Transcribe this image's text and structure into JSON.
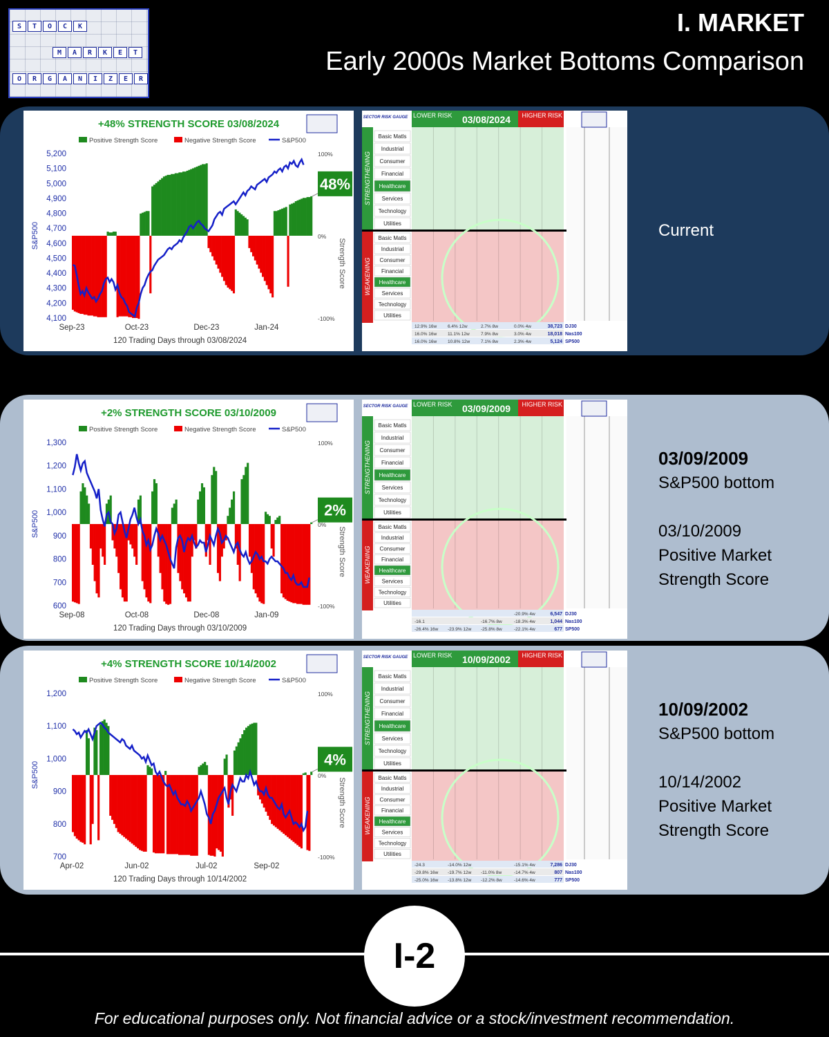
{
  "header": {
    "logo_words": [
      "STOCK",
      "MARKET",
      "ORGANIZER"
    ],
    "title": "I. MARKET",
    "subtitle": "Early 2000s Market Bottoms Comparison"
  },
  "panels": [
    {
      "id": "current",
      "side_label": "Current",
      "side_lines": [],
      "gauge": {
        "date": "03/08/2024",
        "sectors": [
          "Basic Matls",
          "Industrial",
          "Consumer",
          "Financial",
          "Healthcare",
          "Services",
          "Technology",
          "Utilities"
        ],
        "footer_rows": [
          [
            "12.9% 16w",
            "6.4% 12w",
            "2.7% 8w",
            "0.0% 4w",
            "38,723",
            "DJ30"
          ],
          [
            "16.0% 16w",
            "11.1% 12w",
            "7.9% 8w",
            "3.0% 4w",
            "18,018",
            "Nas100"
          ],
          [
            "16.0% 16w",
            "10.8% 12w",
            "7.1% 8w",
            "2.3% 4w",
            "5,124",
            "SP500"
          ]
        ]
      }
    },
    {
      "id": "p2009",
      "side_label": "",
      "side_lines": [
        "03/09/2009",
        "S&P500 bottom",
        "",
        "03/10/2009",
        "Positive Market",
        "Strength Score"
      ],
      "gauge": {
        "date": "03/09/2009",
        "sectors": [
          "Basic Matls",
          "Industrial",
          "Consumer",
          "Financial",
          "Healthcare",
          "Services",
          "Technology",
          "Utilities"
        ],
        "footer_rows": [
          [
            "",
            "",
            "",
            "-20.9% 4w",
            "6,547",
            "DJ30"
          ],
          [
            "-16.1",
            "",
            "-16.7% 8w",
            "-18.3% 4w",
            "1,044",
            "Nas100"
          ],
          [
            "-26.4% 16w",
            "-23.9% 12w",
            "-25.8% 8w",
            "-22.1% 4w",
            "677",
            "SP500"
          ]
        ]
      }
    },
    {
      "id": "p2002",
      "side_label": "",
      "side_lines": [
        "10/09/2002",
        "S&P500 bottom",
        "",
        "10/14/2002",
        "Positive Market",
        "Strength Score"
      ],
      "gauge": {
        "date": "10/09/2002",
        "sectors": [
          "Basic Matls",
          "Industrial",
          "Consumer",
          "Financial",
          "Healthcare",
          "Services",
          "Technology",
          "Utilities"
        ],
        "footer_rows": [
          [
            "-24.3",
            "-14.0% 12w",
            "",
            "-15.1% 4w",
            "7,286",
            "DJ30"
          ],
          [
            "-29.8% 16w",
            "-19.7% 12w",
            "-11.0% 8w",
            "-14.7% 4w",
            "807",
            "Nas100"
          ],
          [
            "-25.0% 16w",
            "-13.8% 12w",
            "-12.2% 8w",
            "-14.6% 4w",
            "777",
            "SP500"
          ]
        ]
      }
    }
  ],
  "gauge_labels": {
    "sector_risk_gauge": "SECTOR RISK GAUGE",
    "lower_risk": "LOWER RISK",
    "higher_risk": "HIGHER RISK",
    "strengthening": "STRENGTHENING",
    "weakening": "WEAKENING"
  },
  "chart_data": [
    {
      "type": "bar+line",
      "title": "+48% STRENGTH SCORE 03/08/2024",
      "legend": [
        "Positive Strength Score",
        "Negative Strength Score",
        "S&P500"
      ],
      "xlabel": "120 Trading Days through 03/08/2024",
      "ylabel": "S&P500",
      "y2label": "Strength Score",
      "x_ticks": [
        "Sep-23",
        "Oct-23",
        "Dec-23",
        "Jan-24"
      ],
      "y_ticks": [
        "4,100",
        "4,200",
        "4,300",
        "4,400",
        "4,500",
        "4,600",
        "4,700",
        "4,800",
        "4,900",
        "5,000",
        "5,100",
        "5,200"
      ],
      "ylim": [
        4100,
        5200
      ],
      "y2_ticks": [
        "-100%",
        "0%",
        "100%"
      ],
      "y2lim": [
        -100,
        100
      ],
      "score_badge": "48%",
      "strength_score": [
        -90,
        -92,
        -93,
        -94,
        -95,
        -95,
        -96,
        -96,
        -97,
        -97,
        -97,
        -98,
        -98,
        -99,
        -99,
        -99,
        -99,
        -99,
        5,
        4,
        4,
        5,
        5,
        -99,
        -98,
        -98,
        -98,
        -98,
        -98,
        -99,
        -99,
        -100,
        -100,
        -100,
        -101,
        27,
        28,
        29,
        30,
        30,
        -70,
        60,
        62,
        64,
        66,
        68,
        70,
        72,
        73,
        74,
        74,
        75,
        75,
        76,
        76,
        77,
        77,
        78,
        78,
        79,
        80,
        81,
        82,
        83,
        84,
        85,
        86,
        87,
        87,
        88,
        -15,
        -20,
        -25,
        -30,
        -35,
        -40,
        -45,
        -50,
        -55,
        -60,
        -63,
        -65,
        -67,
        -70,
        32,
        30,
        28,
        26,
        24,
        22,
        20,
        -15,
        -20,
        -25,
        -30,
        -35,
        -40,
        -45,
        -50,
        -55,
        -60,
        -65,
        -70,
        -75,
        30,
        30,
        31,
        32,
        33,
        34,
        35,
        -62,
        38,
        39,
        40,
        42,
        43,
        44,
        45,
        46,
        46,
        47,
        47,
        48
      ],
      "sp500": [
        4455,
        4450,
        4390,
        4320,
        4260,
        4280,
        4250,
        4300,
        4270,
        4250,
        4230,
        4240,
        4210,
        4230,
        4260,
        4280,
        4330,
        4360,
        4370,
        4340,
        4360,
        4340,
        4290,
        4320,
        4270,
        4240,
        4230,
        4200,
        4180,
        4140,
        4130,
        4120,
        4110,
        4170,
        4200,
        4260,
        4300,
        4320,
        4360,
        4390,
        4410,
        4420,
        4450,
        4470,
        4490,
        4500,
        4510,
        4520,
        4540,
        4560,
        4570,
        4560,
        4580,
        4590,
        4600,
        4620,
        4610,
        4640,
        4660,
        4680,
        4710,
        4720,
        4700,
        4720,
        4740,
        4750,
        4730,
        4720,
        4700,
        4690,
        4680,
        4700,
        4720,
        4760,
        4780,
        4800,
        4810,
        4790,
        4830,
        4840,
        4850,
        4860,
        4870,
        4880,
        4860,
        4880,
        4900,
        4920,
        4940,
        4920,
        4950,
        4960,
        4980,
        4970,
        4960,
        4990,
        5000,
        5010,
        5020,
        5030,
        5010,
        5040,
        5050,
        5060,
        5080,
        5070,
        5090,
        5100,
        5080,
        5110,
        5120,
        5100,
        5140,
        5130,
        5150,
        5120,
        5110,
        5140,
        5160,
        5124
      ]
    },
    {
      "type": "bar+line",
      "title": "+2% STRENGTH SCORE 03/10/2009",
      "legend": [
        "Positive Strength Score",
        "Negative Strength Score",
        "S&P500"
      ],
      "xlabel": "120 Trading Days through 03/10/2009",
      "ylabel": "S&P500",
      "y2label": "Strength Score",
      "x_ticks": [
        "Sep-08",
        "Oct-08",
        "Dec-08",
        "Jan-09"
      ],
      "y_ticks": [
        "600",
        "700",
        "800",
        "900",
        "1,000",
        "1,100",
        "1,200",
        "1,300"
      ],
      "ylim": [
        600,
        1300
      ],
      "y2_ticks": [
        "-100%",
        "0%",
        "100%"
      ],
      "y2lim": [
        -100,
        100
      ],
      "score_badge": "2%",
      "strength_score": [
        -95,
        -96,
        -97,
        -98,
        40,
        50,
        45,
        35,
        25,
        -30,
        -50,
        -70,
        -85,
        -90,
        -30,
        -40,
        -50,
        25,
        30,
        35,
        -20,
        -30,
        -40,
        -60,
        -80,
        -90,
        -95,
        -95,
        -20,
        -25,
        -30,
        -40,
        -50,
        30,
        35,
        -70,
        -80,
        -90,
        -95,
        -97,
        40,
        55,
        50,
        -40,
        -60,
        -80,
        -95,
        -98,
        -99,
        -98,
        20,
        25,
        30,
        -60,
        -70,
        -80,
        -85,
        -90,
        -95,
        -95,
        -40,
        -20,
        -30,
        30,
        40,
        50,
        45,
        -40,
        -20,
        -50,
        60,
        70,
        65,
        -60,
        -70,
        -40,
        -30,
        -20,
        10,
        20,
        30,
        40,
        -30,
        -50,
        -70,
        55,
        60,
        70,
        75,
        -40,
        -60,
        -80,
        -85,
        -90,
        -95,
        -97,
        -98,
        15,
        12,
        10,
        -30,
        -40,
        5,
        8,
        10,
        -85,
        -90,
        -92,
        -94,
        -95,
        -96,
        -97,
        -97,
        -98,
        -98,
        -98,
        -99,
        -99,
        -99,
        -99,
        2
      ],
      "sp500": [
        1160,
        1195,
        1250,
        1210,
        1180,
        1210,
        1220,
        1170,
        1150,
        1130,
        1110,
        1090,
        1060,
        1100,
        1010,
        970,
        940,
        990,
        1000,
        960,
        950,
        910,
        930,
        990,
        1000,
        960,
        920,
        890,
        930,
        970,
        990,
        1020,
        980,
        950,
        970,
        920,
        900,
        860,
        880,
        840,
        860,
        900,
        930,
        910,
        880,
        900,
        880,
        860,
        830,
        800,
        780,
        760,
        850,
        890,
        900,
        880,
        830,
        870,
        890,
        880,
        900,
        870,
        850,
        860,
        880,
        870,
        870,
        830,
        860,
        900,
        880,
        860,
        900,
        930,
        910,
        870,
        880,
        900,
        890,
        870,
        850,
        830,
        860,
        870,
        840,
        820,
        810,
        830,
        800,
        780,
        790,
        810,
        830,
        820,
        800,
        810,
        790,
        790,
        780,
        800,
        810,
        800,
        790,
        790,
        780,
        770,
        760,
        740,
        740,
        720,
        710,
        730,
        700,
        690,
        690,
        700,
        680,
        680,
        680,
        720
      ]
    },
    {
      "type": "bar+line",
      "title": "+4% STRENGTH SCORE 10/14/2002",
      "legend": [
        "Positive Strength Score",
        "Negative Strength Score",
        "S&P500"
      ],
      "xlabel": "120 Trading Days through 10/14/2002",
      "ylabel": "S&P500",
      "y2label": "Strength Score",
      "x_ticks": [
        "Apr-02",
        "Jun-02",
        "Jul-02",
        "Sep-02"
      ],
      "y_ticks": [
        "700",
        "800",
        "900",
        "1,000",
        "1,100",
        "1,200"
      ],
      "ylim": [
        700,
        1200
      ],
      "y2_ticks": [
        "-100%",
        "0%",
        "100%"
      ],
      "y2lim": [
        -100,
        100
      ],
      "score_badge": "4%",
      "strength_score": [
        -70,
        -75,
        -78,
        -80,
        -82,
        -83,
        -85,
        55,
        45,
        -85,
        -60,
        58,
        55,
        -80,
        62,
        66,
        68,
        64,
        60,
        -50,
        -55,
        -60,
        -65,
        -70,
        -72,
        -74,
        -76,
        -78,
        -80,
        -82,
        -84,
        -86,
        -88,
        -90,
        -92,
        -93,
        -94,
        -94,
        12,
        10,
        8,
        -95,
        -96,
        -96,
        -96,
        -96,
        -96,
        5,
        -97,
        -97,
        -97,
        -97,
        -97,
        -97,
        -98,
        -98,
        -98,
        -98,
        -98,
        -98,
        -99,
        -99,
        -99,
        -99,
        10,
        12,
        14,
        16,
        12,
        -98,
        -99,
        -99,
        -100,
        -90,
        -92,
        -94,
        -100,
        20,
        25,
        -40,
        -30,
        -50,
        30,
        35,
        40,
        45,
        50,
        55,
        58,
        60,
        62,
        63,
        64,
        64,
        -25,
        -30,
        -35,
        -40,
        -45,
        -50,
        -55,
        -60,
        -62,
        -64,
        -66,
        -68,
        -70,
        -72,
        -74,
        -76,
        -78,
        -80,
        -82,
        -84,
        -86,
        -88,
        -90,
        2,
        3,
        -92,
        -93,
        4
      ],
      "sp500": [
        1090,
        1085,
        1075,
        1080,
        1065,
        1075,
        1085,
        1080,
        1090,
        1075,
        1060,
        1080,
        1100,
        1105,
        1110,
        1105,
        1095,
        1090,
        1080,
        1075,
        1070,
        1065,
        1060,
        1055,
        1050,
        1060,
        1055,
        1040,
        1035,
        1030,
        1040,
        1025,
        1020,
        1015,
        1010,
        1000,
        1005,
        990,
        1010,
        995,
        980,
        985,
        960,
        950,
        960,
        945,
        930,
        920,
        915,
        920,
        905,
        890,
        900,
        880,
        870,
        860,
        860,
        855,
        870,
        860,
        840,
        850,
        860,
        870,
        880,
        900,
        880,
        860,
        830,
        820,
        800,
        830,
        840,
        860,
        880,
        890,
        900,
        910,
        880,
        860,
        900,
        920,
        910,
        900,
        920,
        940,
        930,
        930,
        950,
        940,
        960,
        940,
        920,
        930,
        910,
        900,
        900,
        890,
        910,
        890,
        880,
        880,
        870,
        860,
        850,
        845,
        860,
        830,
        820,
        830,
        840,
        820,
        800,
        805,
        800,
        790,
        800,
        780,
        790,
        840
      ]
    }
  ]
}
